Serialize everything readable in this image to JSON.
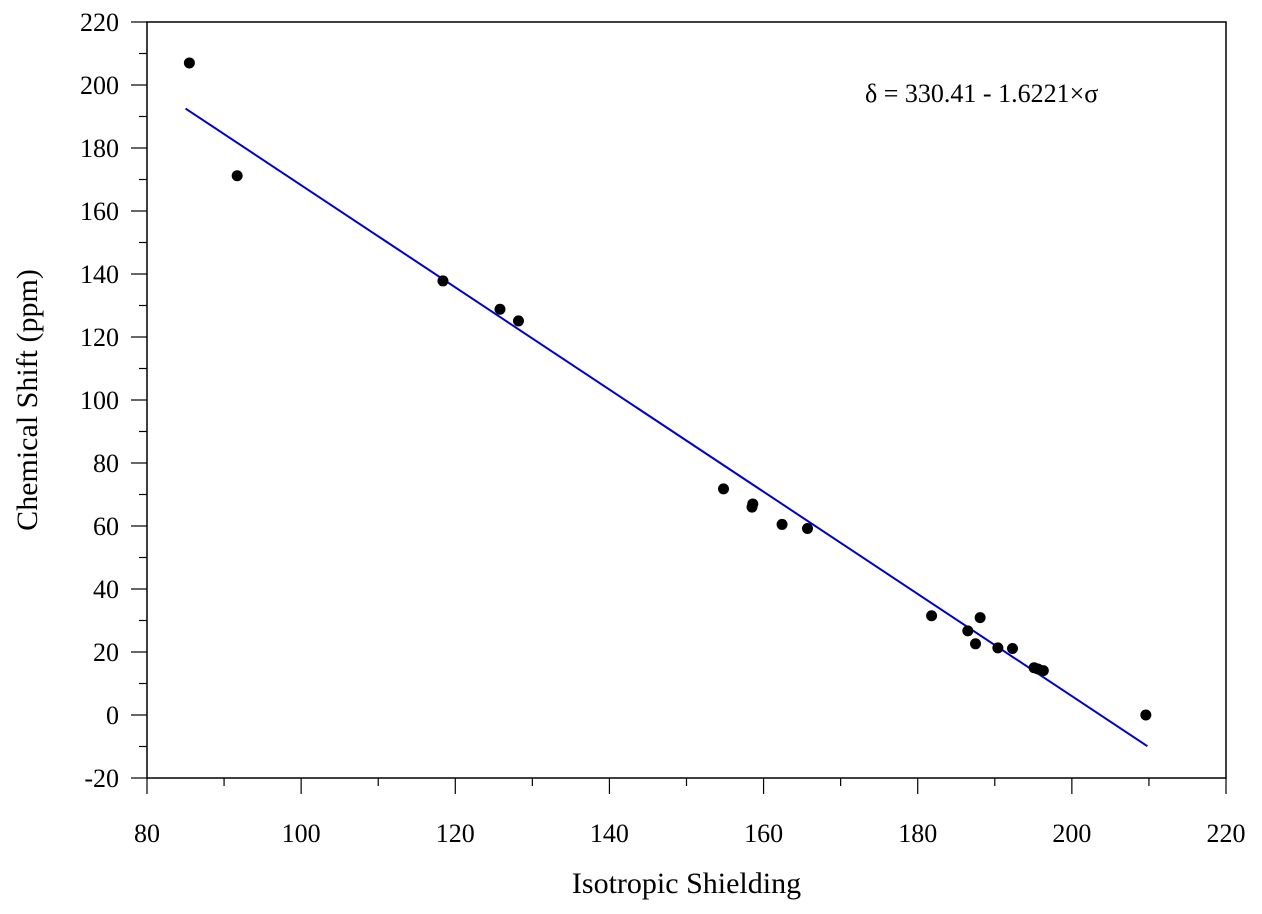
{
  "chart_data": {
    "type": "scatter",
    "title": "",
    "xlabel": "Isotropic Shielding",
    "ylabel": "Chemical Shift (ppm)",
    "xlim": [
      80,
      220
    ],
    "ylim": [
      -20,
      220
    ],
    "x_ticks": [
      80,
      100,
      120,
      140,
      160,
      180,
      200,
      220
    ],
    "y_ticks": [
      -20,
      0,
      20,
      40,
      60,
      80,
      100,
      120,
      140,
      160,
      180,
      200,
      220
    ],
    "x_minor_step": 10,
    "y_minor_step": 10,
    "grid": false,
    "legend": "none",
    "colors": {
      "points": "#000000",
      "fit_line": "#0000cc",
      "axes": "#000000"
    },
    "annotation": "δ = 330.41 - 1.6221×σ",
    "fit": {
      "intercept": 330.41,
      "slope": -1.6221,
      "x_range": [
        85,
        209.8
      ]
    },
    "points": [
      {
        "x": 85.5,
        "y": 207.0
      },
      {
        "x": 91.7,
        "y": 171.2
      },
      {
        "x": 118.4,
        "y": 137.8
      },
      {
        "x": 125.8,
        "y": 128.8
      },
      {
        "x": 128.2,
        "y": 125.1
      },
      {
        "x": 154.8,
        "y": 71.8
      },
      {
        "x": 158.5,
        "y": 66.0
      },
      {
        "x": 158.6,
        "y": 67.0
      },
      {
        "x": 162.4,
        "y": 60.5
      },
      {
        "x": 165.7,
        "y": 59.2
      },
      {
        "x": 181.8,
        "y": 31.5
      },
      {
        "x": 186.5,
        "y": 26.7
      },
      {
        "x": 187.5,
        "y": 22.6
      },
      {
        "x": 188.1,
        "y": 30.9
      },
      {
        "x": 190.4,
        "y": 21.3
      },
      {
        "x": 192.3,
        "y": 21.1
      },
      {
        "x": 195.1,
        "y": 15.0
      },
      {
        "x": 195.6,
        "y": 14.6
      },
      {
        "x": 196.3,
        "y": 14.1
      },
      {
        "x": 209.6,
        "y": 0.0
      }
    ]
  }
}
